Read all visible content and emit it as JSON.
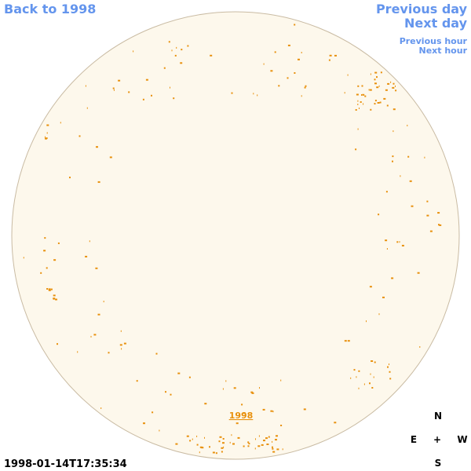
{
  "navigation": {
    "back": "Back to 1998",
    "previous_day": "Previous day",
    "next_day": "Next day",
    "previous_hour": "Previous hour",
    "next_hour": "Next hour"
  },
  "map": {
    "year_label": "1998"
  },
  "compass": {
    "north": "N",
    "east": "E",
    "center": "+",
    "west": "W",
    "south": "S"
  },
  "timestamp": "1998-01-14T17:35:34"
}
